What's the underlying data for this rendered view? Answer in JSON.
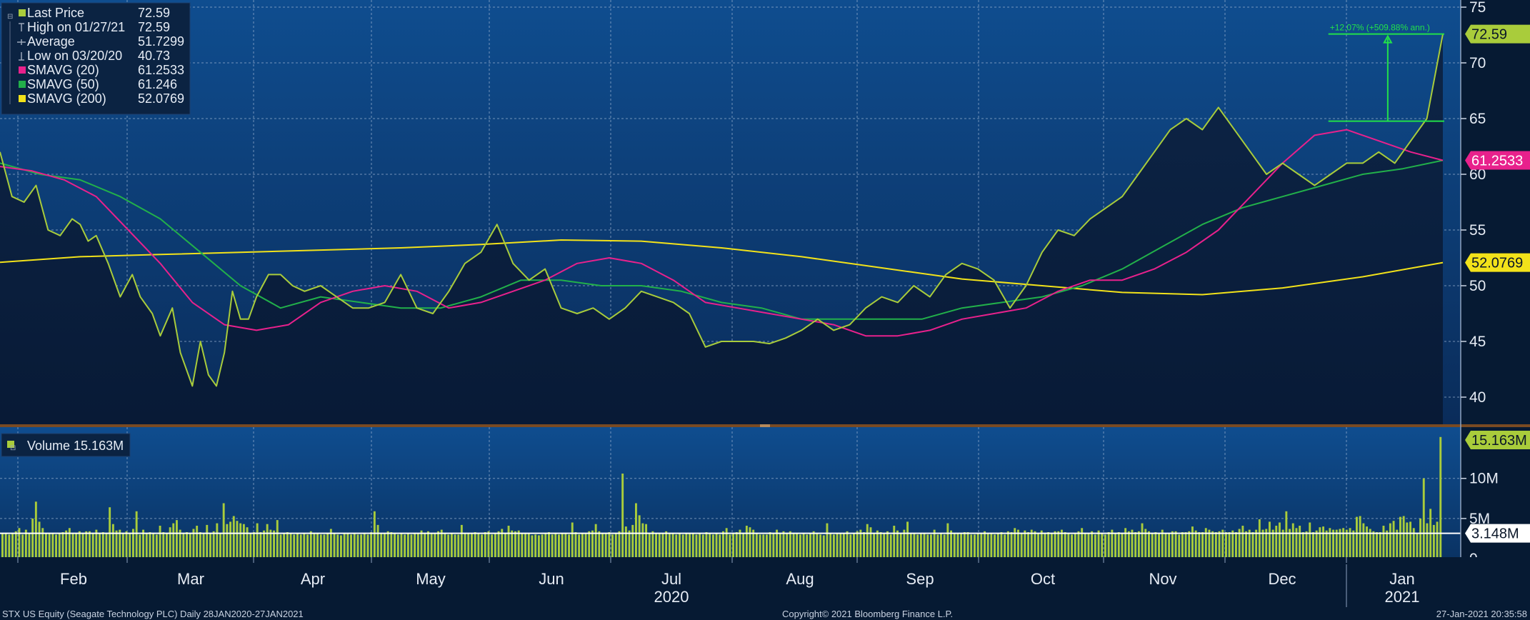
{
  "chart_data": [
    {
      "type": "line",
      "title": "",
      "xlabel": "",
      "ylabel": "",
      "ylim": [
        37.5,
        75
      ],
      "yticks": [
        40,
        45,
        50,
        55,
        60,
        65,
        70,
        75
      ],
      "grid": true,
      "legend": {
        "placement": "top-left",
        "entries": [
          {
            "label": "Last Price",
            "value": "72.59",
            "color": "#a9cc3b",
            "marker": "square"
          },
          {
            "label": "High on 01/27/21",
            "value": "72.59",
            "color": "#9aa6b8",
            "marker": "high"
          },
          {
            "label": "Average",
            "value": "51.7299",
            "color": "#9aa6b8",
            "marker": "avg"
          },
          {
            "label": "Low on 03/20/20",
            "value": "40.73",
            "color": "#9aa6b8",
            "marker": "low"
          },
          {
            "label": "SMAVG (20)",
            "value": "61.2533",
            "color": "#e8218c",
            "marker": "square"
          },
          {
            "label": "SMAVG (50)",
            "value": "61.246",
            "color": "#22b04a",
            "marker": "square"
          },
          {
            "label": "SMAVG (200)",
            "value": "52.0769",
            "color": "#f2e21a",
            "marker": "square"
          }
        ]
      },
      "x_months": [
        "Feb",
        "Mar",
        "Apr",
        "May",
        "Jun",
        "Jul",
        "Aug",
        "Sep",
        "Oct",
        "Nov",
        "Dec",
        "Jan"
      ],
      "x_years": [
        {
          "label": "2020",
          "under": "Jul"
        },
        {
          "label": "2021",
          "under": "Jan"
        }
      ],
      "series": [
        {
          "name": "Last Price",
          "color": "#a9cc3b",
          "x": [
            0,
            3,
            6,
            9,
            12,
            15,
            18,
            20,
            22,
            24,
            27,
            30,
            33,
            35,
            38,
            40,
            43,
            45,
            48,
            50,
            52,
            54,
            56,
            58,
            60,
            62,
            64,
            67,
            70,
            73,
            76,
            80,
            84,
            88,
            92,
            96,
            100,
            104,
            108,
            112,
            116,
            120,
            124,
            128,
            132,
            136,
            140,
            144,
            148,
            152,
            156,
            160,
            164,
            168,
            172,
            176,
            180,
            184,
            188,
            192,
            196,
            200,
            204,
            208,
            212,
            216,
            220,
            224,
            228,
            232,
            236,
            240,
            244,
            248,
            252,
            256,
            260,
            264,
            268,
            272,
            276,
            280,
            284,
            288,
            292,
            296,
            300,
            304,
            308,
            312,
            316,
            320,
            324,
            328,
            332,
            336,
            340,
            344,
            348,
            352,
            356,
            360
          ],
          "y": [
            62,
            58,
            57.5,
            59,
            55,
            54.5,
            56,
            55.5,
            54,
            54.5,
            52,
            49,
            51,
            49,
            47.5,
            45.5,
            48,
            44,
            41,
            45,
            42,
            41,
            44,
            49.5,
            47,
            47,
            49,
            51,
            51,
            50,
            49.5,
            50,
            49,
            48,
            48,
            48.5,
            51,
            48,
            47.5,
            49.5,
            52,
            53,
            55.5,
            52,
            50.5,
            51.5,
            48,
            47.5,
            48,
            47,
            48,
            49.5,
            49,
            48.5,
            47.5,
            44.5,
            45,
            45,
            45,
            44.8,
            45.3,
            46,
            47,
            46,
            46.5,
            48,
            49,
            48.5,
            50,
            49,
            51,
            52,
            51.5,
            50.5,
            48,
            50,
            53,
            55,
            54.5,
            56,
            57,
            58,
            60,
            62,
            64,
            65,
            64,
            66,
            64,
            62,
            60,
            61,
            60,
            59,
            60,
            61,
            61,
            62,
            61,
            63,
            65,
            72.59
          ]
        },
        {
          "name": "SMAVG (20)",
          "color": "#e8218c",
          "x": [
            0,
            8,
            16,
            24,
            32,
            40,
            48,
            56,
            64,
            72,
            80,
            88,
            96,
            104,
            112,
            120,
            128,
            136,
            144,
            152,
            160,
            168,
            176,
            184,
            192,
            200,
            208,
            216,
            224,
            232,
            240,
            248,
            256,
            264,
            272,
            280,
            288,
            296,
            304,
            312,
            320,
            328,
            336,
            344,
            352,
            360
          ],
          "y": [
            60.7,
            60.3,
            59.5,
            58,
            55,
            52,
            48.5,
            46.5,
            46,
            46.5,
            48.5,
            49.5,
            50,
            49.5,
            48,
            48.5,
            49.5,
            50.5,
            52,
            52.5,
            52,
            50.5,
            48.5,
            48,
            47.5,
            47,
            46.5,
            45.5,
            45.5,
            46,
            47,
            47.5,
            48,
            49.5,
            50.5,
            50.5,
            51.5,
            53,
            55,
            58,
            61,
            63.5,
            64,
            63,
            62,
            61.25
          ]
        },
        {
          "name": "SMAVG (50)",
          "color": "#22b04a",
          "x": [
            0,
            10,
            20,
            30,
            40,
            50,
            60,
            70,
            80,
            90,
            100,
            110,
            120,
            130,
            140,
            150,
            160,
            170,
            180,
            190,
            200,
            210,
            220,
            230,
            240,
            250,
            260,
            270,
            280,
            290,
            300,
            310,
            320,
            330,
            340,
            350,
            360
          ],
          "y": [
            61,
            60,
            59.5,
            58,
            56,
            53,
            50,
            48,
            49,
            48.5,
            48,
            48,
            49,
            50.5,
            50.5,
            50,
            50,
            49.5,
            48.5,
            48,
            47,
            47,
            47,
            47,
            48,
            48.5,
            49,
            50,
            51.5,
            53.5,
            55.5,
            57,
            58,
            59,
            60,
            60.5,
            61.25
          ]
        },
        {
          "name": "SMAVG (200)",
          "color": "#f2e21a",
          "x": [
            0,
            20,
            40,
            60,
            80,
            100,
            120,
            140,
            160,
            180,
            200,
            220,
            240,
            260,
            280,
            300,
            320,
            340,
            360
          ],
          "y": [
            52.1,
            52.6,
            52.8,
            53,
            53.2,
            53.4,
            53.7,
            54.1,
            54,
            53.4,
            52.6,
            51.6,
            50.6,
            50,
            49.4,
            49.2,
            49.8,
            50.8,
            52.08
          ]
        }
      ],
      "value_tags": [
        {
          "value": "72.59",
          "y": 72.59,
          "bg": "#a9cc3b",
          "fg": "#0a1628"
        },
        {
          "value": "61.2533",
          "y": 61.2533,
          "bg": "#e8218c",
          "fg": "#ffffff"
        },
        {
          "value": "52.0769",
          "y": 52.0769,
          "bg": "#f2e21a",
          "fg": "#0a1628"
        }
      ],
      "annotation": {
        "text": "+12.07% (+509.88% ann.)",
        "x0": 335,
        "x1": 360,
        "from": 64.77,
        "to": 72.59,
        "color": "#22e04a"
      }
    },
    {
      "type": "bar",
      "title": "",
      "ylim": [
        0,
        15.5
      ],
      "yticks": [
        0,
        5,
        10
      ],
      "ytick_labels": [
        "0",
        "5M",
        "10M"
      ],
      "legend": {
        "entries": [
          {
            "label": "Volume 15.163M",
            "color": "#a9cc3b"
          }
        ]
      },
      "series": [
        {
          "name": "Volume",
          "color": "#a9cc3b",
          "values": [
            3.1,
            3.1,
            3.0,
            3.2,
            3.4,
            3.8,
            3.0,
            3.6,
            3.2,
            5.0,
            7.1,
            4.6,
            3.8,
            3.2,
            3.2,
            3.1,
            3.0,
            3.2,
            3.3,
            3.5,
            3.8,
            3.1,
            3.2,
            3.4,
            3.2,
            3.4,
            3.4,
            3.2,
            3.6,
            3.2,
            3.3,
            3.1,
            6.4,
            4.3,
            3.5,
            3.6,
            3.2,
            3.4,
            3.1,
            3.7,
            5.9,
            3.0,
            3.6,
            3.1,
            3.3,
            3.1,
            3.0,
            4.1,
            3.3,
            3.2,
            3.9,
            4.4,
            4.8,
            3.6,
            3.1,
            3.3,
            3.2,
            3.7,
            4.1,
            3.3,
            3.2,
            4.2,
            3.1,
            3.4,
            4.4,
            3.1,
            6.9,
            4.3,
            4.6,
            5.3,
            4.7,
            4.4,
            4.3,
            3.9,
            3.1,
            3.3,
            4.4,
            3.3,
            3.5,
            4.3,
            3.6,
            3.5,
            4.8,
            3.0,
            3.1,
            3.3,
            3.1,
            3.0,
            3.2,
            3.0,
            3.2,
            3.0,
            3.4,
            3.2,
            3.1,
            3.0,
            3.0,
            3.2,
            3.7,
            3.1,
            3.0,
            2.9,
            3.2,
            3.1,
            3.0,
            3.2,
            3.0,
            3.0,
            3.1,
            3.0,
            3.3,
            5.9,
            4.2,
            3.2,
            3.1,
            3.4,
            3.3,
            3.1,
            3.0,
            3.2,
            3.0,
            3.1,
            3.0,
            3.1,
            3.2,
            3.5,
            3.2,
            3.4,
            3.2,
            3.2,
            3.4,
            3.6,
            3.2,
            3.0,
            3.1,
            3.0,
            3.0,
            4.2,
            3.2,
            3.2,
            3.1,
            3.3,
            3.2,
            3.0,
            3.3,
            3.4,
            3.0,
            3.1,
            3.4,
            3.7,
            3.2,
            4.1,
            3.5,
            3.4,
            3.5,
            3.1,
            3.1,
            3.2,
            2.9,
            3.0,
            2.9,
            3.0,
            3.1,
            3.3,
            3.0,
            3.2,
            3.0,
            3.1,
            3.1,
            3.0,
            4.5,
            3.3,
            3.0,
            3.2,
            3.1,
            3.4,
            3.5,
            4.3,
            3.4,
            3.2,
            3.1,
            3.3,
            3.0,
            3.2,
            3.4,
            10.6,
            4.0,
            3.5,
            4.2,
            6.9,
            5.4,
            4.4,
            4.3,
            3.2,
            3.4,
            3.1,
            3.1,
            3.2,
            3.4,
            3.1,
            3.2,
            3.0,
            3.2,
            3.0,
            3.2,
            3.1,
            3.2,
            3.0,
            3.1,
            3.0,
            3.3,
            3.1,
            3.0,
            3.1,
            3.0,
            3.4,
            3.8,
            3.0,
            3.2,
            3.3,
            3.6,
            3.1,
            4.1,
            3.9,
            3.6,
            3.2,
            3.0,
            3.0,
            3.0,
            3.3,
            3.1,
            3.6,
            3.2,
            3.4,
            3.2,
            3.4,
            3.2,
            3.2,
            3.0,
            3.2,
            3.0,
            3.1,
            3.4,
            3.2,
            3.0,
            2.9,
            4.4,
            3.1,
            3.0,
            3.2,
            3.2,
            3.1,
            3.4,
            3.0,
            3.2,
            3.4,
            3.6,
            3.3,
            4.3,
            3.9,
            3.2,
            3.5,
            3.3,
            3.2,
            3.4,
            3.0,
            4.1,
            3.5,
            3.2,
            3.6,
            4.6,
            3.1,
            3.2,
            3.0,
            3.1,
            3.1,
            3.0,
            3.0,
            3.6,
            3.0,
            3.2,
            3.0,
            4.4,
            3.5,
            3.2,
            3.2,
            3.2,
            3.3,
            3.3,
            3.0,
            3.0,
            3.1,
            3.2,
            3.4,
            3.2,
            3.1,
            3.0,
            3.2,
            3.3,
            3.0,
            3.4,
            3.3,
            3.8,
            3.6,
            3.1,
            3.5,
            3.3,
            3.6,
            3.4,
            3.2,
            3.5,
            3.2,
            3.3,
            3.2,
            3.4,
            3.4,
            3.6,
            3.3,
            3.2,
            3.0,
            3.2,
            3.4,
            3.8,
            3.1,
            3.2,
            3.4,
            3.0,
            3.5,
            3.2,
            3.0,
            3.3,
            3.6,
            3.1,
            3.3,
            3.2,
            3.8,
            3.4,
            3.6,
            3.3,
            3.4,
            4.4,
            3.7,
            3.4,
            3.2,
            3.3,
            3.1,
            3.6,
            3.1,
            3.2,
            3.4,
            3.4,
            3.0,
            3.3,
            3.3,
            3.4,
            4.0,
            3.5,
            3.3,
            3.3,
            3.8,
            3.6,
            3.4,
            3.3,
            3.4,
            3.6,
            3.3,
            3.3,
            3.5,
            3.3,
            3.7,
            4.1,
            3.4,
            3.6,
            3.3,
            3.6,
            4.9,
            3.6,
            3.7,
            4.6,
            3.6,
            4.1,
            4.5,
            3.6,
            5.9,
            3.7,
            4.4,
            3.8,
            4.1,
            3.3,
            3.4,
            4.5,
            3.3,
            3.5,
            3.9,
            4.0,
            3.5,
            3.8,
            3.6,
            3.6,
            3.7,
            3.8,
            3.6,
            3.8,
            3.5,
            5.2,
            5.3,
            4.4,
            4.0,
            3.7,
            3.4,
            3.3,
            3.3,
            4.1,
            3.5,
            4.4,
            4.7,
            3.6,
            5.2,
            5.3,
            4.5,
            4.6,
            3.8,
            3.2,
            5.0,
            10.0,
            4.4,
            6.2,
            4.2,
            4.6,
            15.163
          ]
        },
        {
          "name": "Average",
          "color": "#ffffff",
          "values": [
            3.148
          ]
        }
      ],
      "value_tags": [
        {
          "value": "15.163M",
          "y": 15.163,
          "bg": "#a9cc3b",
          "fg": "#0a1628"
        },
        {
          "value": "3.148M",
          "y": 3.148,
          "bg": "#ffffff",
          "fg": "#0a1628"
        }
      ]
    }
  ],
  "footer": {
    "left": "STX US Equity (Seagate Technology PLC)  Daily 28JAN2020-27JAN2021",
    "center": "Copyright© 2021 Bloomberg Finance L.P.",
    "right": "27-Jan-2021 20:35:58"
  }
}
